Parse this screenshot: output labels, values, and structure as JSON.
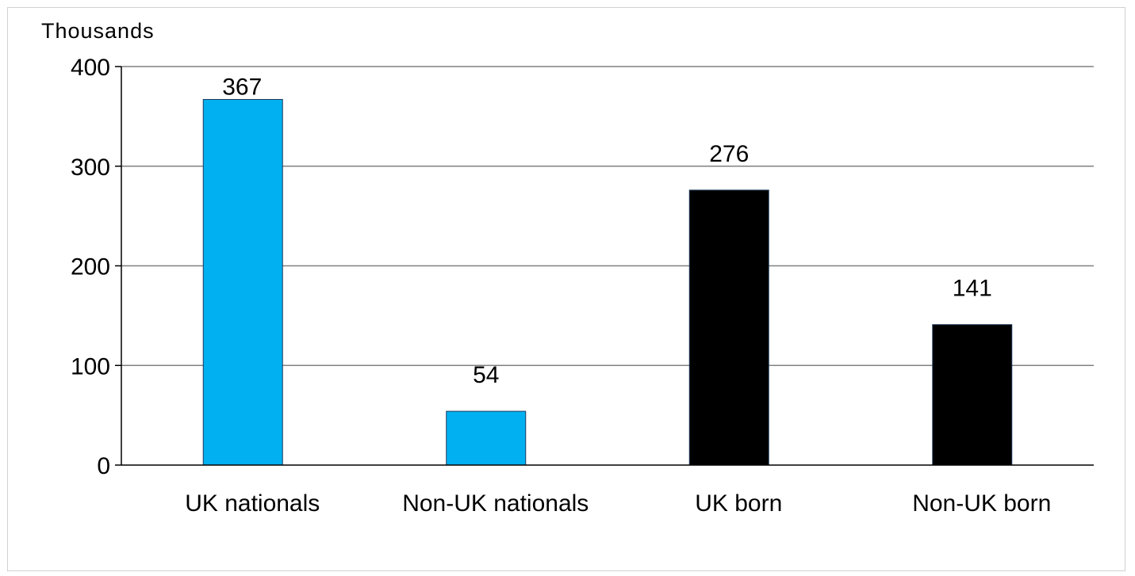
{
  "chart_data": {
    "type": "bar",
    "unit_label": "Thousands",
    "categories": [
      "UK nationals",
      "Non-UK nationals",
      "UK born",
      "Non-UK born"
    ],
    "values": [
      367,
      54,
      276,
      141
    ],
    "bar_colors": [
      "#00b0f0",
      "#00b0f0",
      "#000000",
      "#000000"
    ],
    "data_labels": [
      "367",
      "54",
      "276",
      "141"
    ],
    "ylim": [
      0,
      400
    ],
    "yticks": [
      0,
      100,
      200,
      300,
      400
    ],
    "ytick_labels": [
      "0",
      "100",
      "200",
      "300",
      "400"
    ],
    "grid": true,
    "legend": "none"
  }
}
